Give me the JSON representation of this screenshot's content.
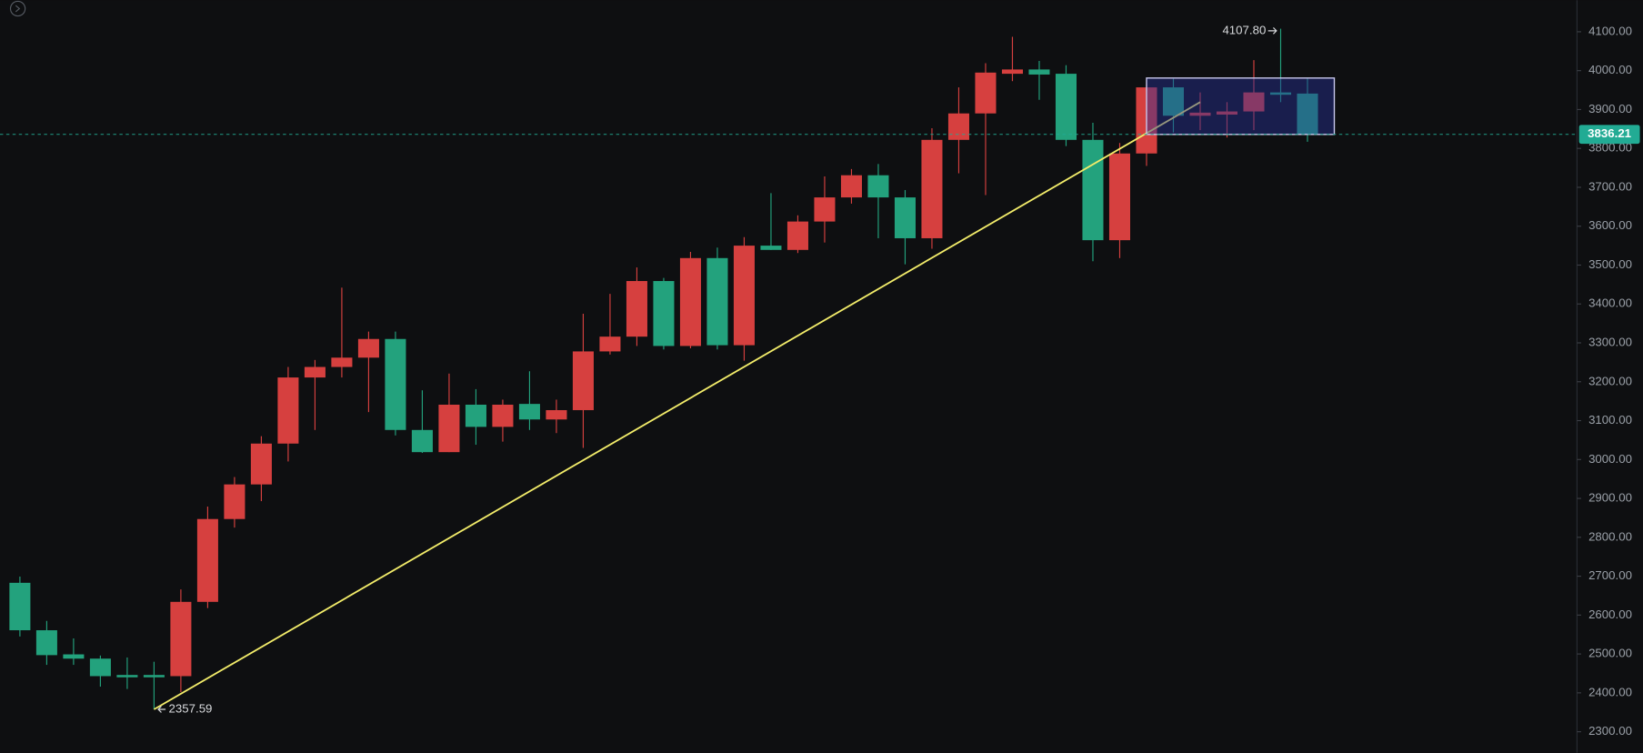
{
  "chart_data": {
    "type": "candlestick",
    "up_color": "#d6403f",
    "down_color": "#23a27d",
    "open": [
      2683,
      2561,
      2499,
      2488,
      2446,
      2446,
      2443,
      2634,
      2847,
      2936,
      3041,
      3211,
      3238,
      3262,
      3310,
      3076,
      3019,
      3141,
      3084,
      3143,
      3103,
      3127,
      3278,
      3316,
      3459,
      3292,
      3518,
      3294,
      3550,
      3539,
      3612,
      3674,
      3731,
      3674,
      3569,
      3822,
      3890,
      3992,
      4003,
      3992,
      3822,
      3564,
      3787,
      3957,
      3884,
      3887,
      3895,
      3944,
      3941
    ],
    "high": [
      2699,
      2585,
      2540,
      2496,
      2491,
      2480,
      2666,
      2879,
      2955,
      3060,
      3238,
      3256,
      3442,
      3329,
      3329,
      3178,
      3221,
      3181,
      3154,
      3227,
      3154,
      3375,
      3426,
      3494,
      3467,
      3534,
      3545,
      3572,
      3685,
      3628,
      3728,
      3747,
      3760,
      3693,
      3852,
      3957,
      4019,
      4087,
      4025,
      4014,
      3866,
      3814,
      3965,
      3979,
      3944,
      3919,
      4027,
      4107.8,
      3981
    ],
    "low": [
      2545,
      2472,
      2472,
      2416,
      2410,
      2357.59,
      2402,
      2618,
      2825,
      2893,
      2995,
      3076,
      3211,
      3122,
      3062,
      3017,
      3019,
      3038,
      3046,
      3076,
      3068,
      3030,
      3270,
      3292,
      3283,
      3286,
      3283,
      3254,
      3539,
      3531,
      3558,
      3658,
      3569,
      3502,
      3542,
      3736,
      3680,
      3973,
      3925,
      3806,
      3510,
      3518,
      3755,
      3841,
      3847,
      3828,
      3847,
      3919,
      3817
    ],
    "close": [
      2561,
      2497,
      2488,
      2443,
      2440,
      2440,
      2634,
      2847,
      2936,
      3041,
      3211,
      3238,
      3262,
      3310,
      3076,
      3019,
      3141,
      3084,
      3141,
      3103,
      3127,
      3278,
      3316,
      3459,
      3292,
      3518,
      3294,
      3550,
      3539,
      3612,
      3674,
      3731,
      3674,
      3569,
      3822,
      3890,
      3995,
      4003,
      3990,
      3822,
      3564,
      3787,
      3957,
      3884,
      3892,
      3895,
      3944,
      3938,
      3836.21
    ],
    "last_price": 3836.21,
    "last_price_color": "#22ab94",
    "high_label": {
      "value": 4107.8,
      "label": "4107.80"
    },
    "low_label": {
      "value": 2357.59,
      "label": "2357.59"
    },
    "trendline": {
      "start_index": 5,
      "start_value": 2357.59,
      "end_index": 44,
      "end_value": 3919,
      "color": "#f2ec6a"
    },
    "range_box": {
      "start_index": 42,
      "end_index": 49,
      "top": 3981,
      "bottom": 3836
    },
    "ylim": [
      2246,
      4181
    ],
    "yticks": [
      {
        "value": 2300,
        "label": "2300.00"
      },
      {
        "value": 2400,
        "label": "2400.00"
      },
      {
        "value": 2500,
        "label": "2500.00"
      },
      {
        "value": 2600,
        "label": "2600.00"
      },
      {
        "value": 2700,
        "label": "2700.00"
      },
      {
        "value": 2800,
        "label": "2800.00"
      },
      {
        "value": 2900,
        "label": "2900.00"
      },
      {
        "value": 3000,
        "label": "3000.00"
      },
      {
        "value": 3100,
        "label": "3100.00"
      },
      {
        "value": 3200,
        "label": "3200.00"
      },
      {
        "value": 3300,
        "label": "3300.00"
      },
      {
        "value": 3400,
        "label": "3400.00"
      },
      {
        "value": 3500,
        "label": "3500.00"
      },
      {
        "value": 3600,
        "label": "3600.00"
      },
      {
        "value": 3700,
        "label": "3700.00"
      },
      {
        "value": 3800,
        "label": "3800.00"
      },
      {
        "value": 3900,
        "label": "3900.00"
      },
      {
        "value": 4000,
        "label": "4000.00"
      },
      {
        "value": 4100,
        "label": "4100.00"
      }
    ]
  }
}
